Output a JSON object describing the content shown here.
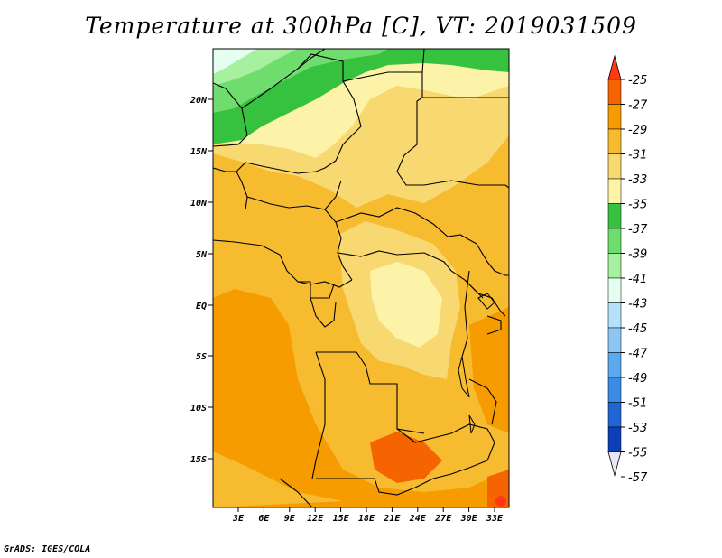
{
  "title": "Temperature at 300hPa [C], VT: 2019031509",
  "footer": "GrADS: IGES/COLA",
  "map": {
    "lat_labels": [
      "20N",
      "15N",
      "10N",
      "5N",
      "EQ",
      "5S",
      "10S",
      "15S"
    ],
    "lon_labels": [
      "3E",
      "6E",
      "9E",
      "12E",
      "15E",
      "18E",
      "21E",
      "24E",
      "27E",
      "30E",
      "33E"
    ]
  },
  "colorbar": {
    "labels": [
      "-25",
      "-27",
      "-29",
      "-31",
      "-33",
      "-35",
      "-37",
      "-39",
      "-41",
      "-43",
      "-45",
      "-47",
      "-49",
      "-51",
      "-53",
      "-55",
      "-57"
    ],
    "colors": [
      "#ff3a10",
      "#f56400",
      "#f79c00",
      "#f7bb30",
      "#f8d870",
      "#fcf3a8",
      "#36c13f",
      "#6edd6e",
      "#a6f0a0",
      "#e4fff0",
      "#b6e1fb",
      "#8dc6f5",
      "#5da9ee",
      "#3a8ae6",
      "#1f66d4",
      "#0c3fb8",
      "#061a78"
    ]
  }
}
